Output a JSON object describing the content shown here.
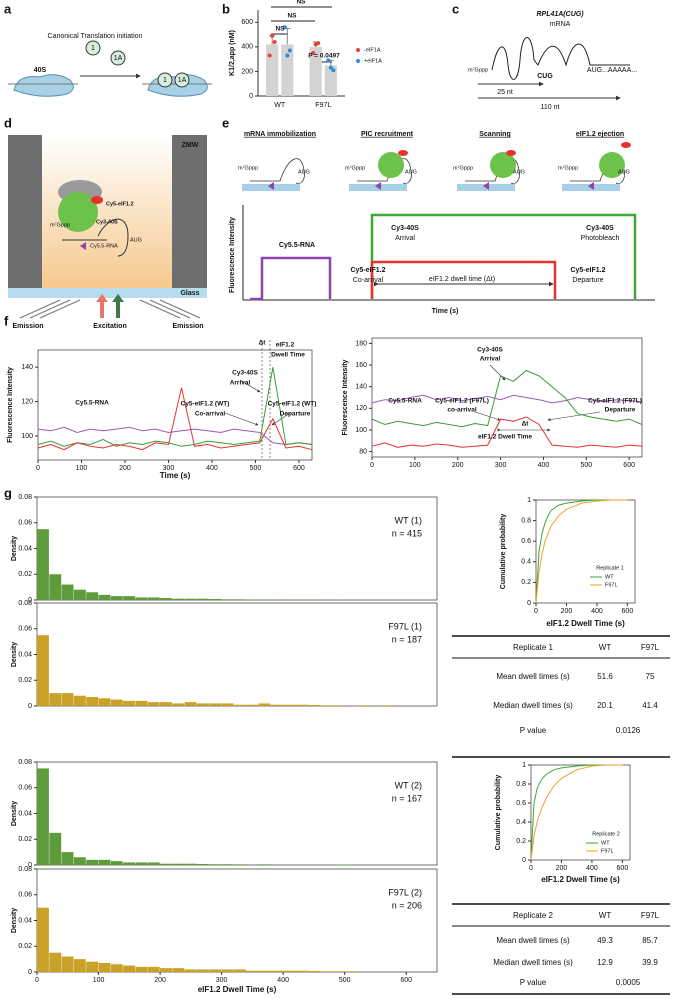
{
  "panel_labels": [
    "a",
    "b",
    "c",
    "d",
    "e",
    "f",
    "g"
  ],
  "panel_a": {
    "title": "Canonical Translation initiation",
    "subunit": "40S",
    "factors": [
      "1",
      "1A"
    ]
  },
  "panel_c": {
    "title": "RPL41A(CUG)",
    "subtitle": "mRNA",
    "cap": "m⁷Gppp",
    "start": "CUG",
    "downstream": "AUG...AAAAA...",
    "distances": [
      "25 nt",
      "110 nt"
    ]
  },
  "panel_d": {
    "chamber": "ZMW",
    "labels": [
      "Cy5-eIF1.2",
      "Cy3-40S",
      "m⁷Gppp",
      "Cy5.5-RNA",
      "AUG"
    ],
    "surface": "Glass",
    "light": [
      "Emission",
      "Excitation",
      "Emission"
    ]
  },
  "panel_e": {
    "steps": [
      "mRNA immobilization",
      "PIC recruitment",
      "Scanning",
      "eIF1.2 ejection"
    ],
    "cartoon_texts": [
      "m⁷Gppp",
      "AUG"
    ],
    "ylabel": "Fluorescence Intensity",
    "xlabel": "Time (s)",
    "events": [
      "Cy5.5-RNA",
      "Cy3-40S",
      "Arrival",
      "Cy3-40S",
      "Photobleach",
      "Cy5-eIF1.2",
      "Co-arrival",
      "Cy5-eIF1.2",
      "Departure",
      "eIF1.2 dwell time (Δt)"
    ]
  },
  "chart_data": [
    {
      "type": "bar",
      "ylabel": "K1/2,app (nM)",
      "categories": [
        "WT",
        "F97L"
      ],
      "bar_color": "#d3d3d3",
      "series": [
        {
          "name": "-eIF1A",
          "color": "#e8413c",
          "values": [
            420,
            400
          ],
          "errors": [
            70,
            40
          ],
          "points": [
            [
              330,
              490,
              440
            ],
            [
              350,
              420,
              430
            ]
          ]
        },
        {
          "name": "+eIF1A",
          "color": "#2b8be0",
          "values": [
            420,
            250
          ],
          "errors": [
            130,
            40
          ],
          "points": [
            [
              560,
              330,
              370
            ],
            [
              290,
              230,
              210
            ]
          ]
        }
      ],
      "ylim": [
        0,
        700
      ],
      "yticks": [
        0,
        200,
        400,
        600
      ],
      "annotations": [
        {
          "text": "NS",
          "color": "#000000"
        },
        {
          "text": "NS",
          "color": "#000000"
        },
        {
          "text": "NS",
          "color": "#000000"
        },
        {
          "text": "P = 0.0497",
          "color": "#000000"
        }
      ]
    },
    {
      "type": "line",
      "xlabel": "Time (s)",
      "ylabel": "Fluorescence Intensity",
      "x": [
        0,
        30,
        60,
        90,
        120,
        150,
        180,
        210,
        240,
        270,
        300,
        330,
        360,
        390,
        420,
        450,
        480,
        510,
        540,
        570,
        600,
        630
      ],
      "series": [
        {
          "color": "#9b59b6",
          "values": [
            104,
            103,
            105,
            102,
            104,
            103,
            104,
            105,
            103,
            104,
            102,
            103,
            104,
            103,
            102,
            104,
            103,
            102,
            96,
            95,
            96,
            95
          ]
        },
        {
          "color": "#3a9a3a",
          "values": [
            95,
            97,
            94,
            96,
            95,
            98,
            94,
            96,
            95,
            97,
            96,
            94,
            95,
            97,
            96,
            95,
            96,
            97,
            140,
            95,
            96,
            95
          ]
        },
        {
          "color": "#e8312a",
          "values": [
            93,
            95,
            92,
            96,
            94,
            93,
            95,
            94,
            92,
            96,
            95,
            128,
            94,
            95,
            93,
            94,
            95,
            96,
            110,
            93,
            94,
            92
          ]
        }
      ],
      "xlim": [
        0,
        630
      ],
      "xticks": [
        0,
        100,
        200,
        300,
        400,
        500,
        600
      ],
      "ylim": [
        86,
        150
      ],
      "yticks": [
        100,
        120,
        140
      ],
      "annotations": [
        {
          "text": "Cy3-40S",
          "color": "#2e8b2e"
        },
        {
          "text": "Arrival",
          "color": "#000000"
        },
        {
          "text": "Cy5-eIF1.2 (WT)",
          "color": "#e8312a"
        },
        {
          "text": "Co-arrival",
          "color": "#000000"
        },
        {
          "text": "Cy5-eIF1.2 (WT)",
          "color": "#e8312a"
        },
        {
          "text": "Departure",
          "color": "#000000"
        },
        {
          "text": "Cy5.5-RNA",
          "color": "#8e44ad"
        },
        {
          "text": "Δt",
          "color": "#000000"
        },
        {
          "text": "eIF1.2",
          "color": "#000000"
        },
        {
          "text": "Dwell Time",
          "color": "#000000"
        }
      ]
    },
    {
      "type": "line",
      "ylabel": "Fluorescence Intensity",
      "x": [
        0,
        30,
        60,
        90,
        120,
        150,
        180,
        210,
        240,
        270,
        300,
        330,
        360,
        390,
        420,
        450,
        480,
        510,
        540,
        570,
        600,
        630
      ],
      "series": [
        {
          "color": "#9b59b6",
          "values": [
            125,
            128,
            127,
            130,
            132,
            128,
            130,
            127,
            129,
            131,
            128,
            132,
            130,
            128,
            125,
            127,
            130,
            128,
            126,
            128,
            127,
            126
          ]
        },
        {
          "color": "#3a9a3a",
          "values": [
            110,
            105,
            108,
            106,
            104,
            107,
            105,
            103,
            106,
            104,
            150,
            145,
            155,
            150,
            140,
            130,
            115,
            112,
            110,
            108,
            110,
            105
          ]
        },
        {
          "color": "#e8312a",
          "values": [
            85,
            88,
            84,
            86,
            85,
            87,
            86,
            84,
            85,
            86,
            110,
            108,
            112,
            105,
            86,
            85,
            84,
            86,
            85,
            84,
            86,
            85
          ]
        }
      ],
      "xlim": [
        0,
        630
      ],
      "xticks": [
        0,
        100,
        200,
        300,
        400,
        500,
        600
      ],
      "ylim": [
        75,
        185
      ],
      "yticks": [
        80,
        100,
        120,
        140,
        160,
        180
      ],
      "annotations": [
        {
          "text": "Cy3-40S",
          "color": "#2e8b2e"
        },
        {
          "text": "Arrival",
          "color": "#000000"
        },
        {
          "text": "Cy5-eIF1.2 (F97L)",
          "color": "#e8312a"
        },
        {
          "text": "co-arrival",
          "color": "#000000"
        },
        {
          "text": "Cy5-eIF1.2 (F97L)",
          "color": "#e8312a"
        },
        {
          "text": "Departure",
          "color": "#000000"
        },
        {
          "text": "Cy5.5-RNA",
          "color": "#8e44ad"
        },
        {
          "text": "Δt",
          "color": "#000000"
        },
        {
          "text": "eIF1.2 Dwell Time",
          "color": "#000000"
        }
      ]
    },
    {
      "type": "histogram",
      "label": "WT (1)",
      "n_label": "n = 415",
      "ylabel": "Density",
      "color": "#5e9b3a",
      "bins": [
        0,
        20,
        40,
        60,
        80,
        100,
        120,
        140,
        160,
        180,
        200,
        220,
        240,
        260,
        280,
        300,
        320,
        340,
        360,
        380,
        400,
        420,
        440,
        460,
        480,
        500,
        520,
        540,
        560,
        580,
        600,
        620,
        640
      ],
      "counts": [
        0.055,
        0.02,
        0.012,
        0.008,
        0.006,
        0.004,
        0.003,
        0.003,
        0.002,
        0.002,
        0.0015,
        0.001,
        0.001,
        0.001,
        0.0008,
        0.0005,
        0.0005,
        0.0004,
        0.0003,
        0.0003,
        0.0002,
        0.0002,
        0.0002,
        0,
        0.0002,
        0,
        0,
        0,
        0,
        0,
        0,
        0
      ],
      "xlim": [
        0,
        650
      ],
      "ylim": [
        0,
        0.08
      ],
      "yticks": [
        0,
        0.02,
        0.04,
        0.06,
        0.08
      ]
    },
    {
      "type": "histogram",
      "label": "F97L (1)",
      "n_label": "n = 187",
      "ylabel": "Density",
      "color": "#c9a227",
      "bins": [
        0,
        20,
        40,
        60,
        80,
        100,
        120,
        140,
        160,
        180,
        200,
        220,
        240,
        260,
        280,
        300,
        320,
        340,
        360,
        380,
        400,
        420,
        440,
        460,
        480,
        500,
        520,
        540,
        560,
        580,
        600,
        620,
        640
      ],
      "counts": [
        0.055,
        0.01,
        0.01,
        0.008,
        0.007,
        0.006,
        0.005,
        0.004,
        0.004,
        0.003,
        0.003,
        0.002,
        0.003,
        0.002,
        0.002,
        0.002,
        0.001,
        0.001,
        0.002,
        0.001,
        0.001,
        0.001,
        0.0008,
        0.0005,
        0.0005,
        0,
        0.0005,
        0,
        0.0005,
        0,
        0,
        0
      ],
      "xlim": [
        0,
        650
      ],
      "ylim": [
        0,
        0.08
      ],
      "yticks": [
        0,
        0.02,
        0.04,
        0.06,
        0.08
      ]
    },
    {
      "type": "histogram",
      "label": "WT (2)",
      "n_label": "n = 167",
      "ylabel": "Density",
      "color": "#5e9b3a",
      "bins": [
        0,
        20,
        40,
        60,
        80,
        100,
        120,
        140,
        160,
        180,
        200,
        220,
        240,
        260,
        280,
        300,
        320,
        340,
        360,
        380,
        400,
        420,
        440,
        460,
        480,
        500,
        520,
        540,
        560,
        580,
        600,
        620,
        640
      ],
      "counts": [
        0.075,
        0.025,
        0.01,
        0.006,
        0.004,
        0.004,
        0.003,
        0.002,
        0.002,
        0.002,
        0.001,
        0.001,
        0.001,
        0.0008,
        0.0006,
        0.0006,
        0.0005,
        0,
        0.0005,
        0,
        0,
        0,
        0,
        0,
        0.0004,
        0.0004,
        0,
        0,
        0,
        0,
        0,
        0
      ],
      "xlim": [
        0,
        650
      ],
      "ylim": [
        0,
        0.08
      ],
      "yticks": [
        0,
        0.02,
        0.04,
        0.06,
        0.08
      ]
    },
    {
      "type": "histogram",
      "label": "F97L (2)",
      "n_label": "n = 206",
      "ylabel": "Density",
      "xlabel": "eIF1.2 Dwell Time (s)",
      "color": "#c9a227",
      "bins": [
        0,
        20,
        40,
        60,
        80,
        100,
        120,
        140,
        160,
        180,
        200,
        220,
        240,
        260,
        280,
        300,
        320,
        340,
        360,
        380,
        400,
        420,
        440,
        460,
        480,
        500,
        520,
        540,
        560,
        580,
        600,
        620,
        640
      ],
      "counts": [
        0.05,
        0.015,
        0.012,
        0.01,
        0.008,
        0.007,
        0.006,
        0.005,
        0.004,
        0.004,
        0.003,
        0.003,
        0.002,
        0.002,
        0.002,
        0.002,
        0.002,
        0.001,
        0.001,
        0.001,
        0.001,
        0.001,
        0.0008,
        0.0005,
        0.0005,
        0.0005,
        0,
        0,
        0,
        0,
        0,
        0
      ],
      "xlim": [
        0,
        650
      ],
      "xticks": [
        0,
        100,
        200,
        300,
        400,
        500,
        600
      ],
      "ylim": [
        0,
        0.08
      ],
      "yticks": [
        0,
        0.02,
        0.04,
        0.06,
        0.08
      ]
    },
    {
      "type": "line",
      "xlabel": "eIF1.2 Dwell Time (s)",
      "ylabel": "Cumulative probability",
      "legend_title": "Replicate 1",
      "x": [
        0,
        20,
        40,
        60,
        80,
        100,
        150,
        200,
        300,
        400,
        500,
        600
      ],
      "series": [
        {
          "name": "WT",
          "color": "#3aaa35",
          "values": [
            0,
            0.5,
            0.68,
            0.78,
            0.85,
            0.9,
            0.95,
            0.97,
            0.99,
            1,
            1,
            1
          ]
        },
        {
          "name": "F97L",
          "color": "#f2a12a",
          "values": [
            0,
            0.3,
            0.48,
            0.6,
            0.68,
            0.75,
            0.85,
            0.91,
            0.97,
            0.99,
            1,
            1
          ]
        }
      ],
      "xlim": [
        0,
        650
      ],
      "xticks": [
        0,
        200,
        400,
        600
      ],
      "ylim": [
        0,
        1
      ],
      "yticks": [
        0,
        0.2,
        0.4,
        0.6,
        0.8,
        1
      ]
    },
    {
      "type": "line",
      "xlabel": "eIF1.2 Dwell Time (s)",
      "ylabel": "Cumulative probability",
      "legend_title": "Replicate 2",
      "x": [
        0,
        20,
        40,
        60,
        80,
        100,
        150,
        200,
        300,
        400,
        500,
        600
      ],
      "series": [
        {
          "name": "WT",
          "color": "#3aaa35",
          "values": [
            0,
            0.6,
            0.75,
            0.82,
            0.87,
            0.9,
            0.95,
            0.97,
            0.99,
            1,
            1,
            1
          ]
        },
        {
          "name": "F97L",
          "color": "#f2a12a",
          "values": [
            0,
            0.25,
            0.4,
            0.5,
            0.58,
            0.65,
            0.78,
            0.86,
            0.95,
            0.99,
            1,
            1
          ]
        }
      ],
      "xlim": [
        0,
        650
      ],
      "xticks": [
        0,
        200,
        400,
        600
      ],
      "ylim": [
        0,
        1
      ],
      "yticks": [
        0,
        0.2,
        0.4,
        0.6,
        0.8,
        1
      ]
    }
  ],
  "tables": [
    {
      "header": [
        "Replicate 1",
        "WT",
        "F97L"
      ],
      "rows": [
        [
          "Mean dwell times (s)",
          "51.6",
          "75"
        ],
        [
          "Median dwell times (s)",
          "20.1",
          "41.4"
        ],
        [
          "P value",
          "0.0126"
        ]
      ]
    },
    {
      "header": [
        "Replicate 2",
        "WT",
        "F97L"
      ],
      "rows": [
        [
          "Mean dwell times (s)",
          "49.3",
          "85.7"
        ],
        [
          "Median dwell times (s)",
          "12.9",
          "39.9"
        ],
        [
          "P value",
          "0.0005"
        ]
      ]
    }
  ]
}
